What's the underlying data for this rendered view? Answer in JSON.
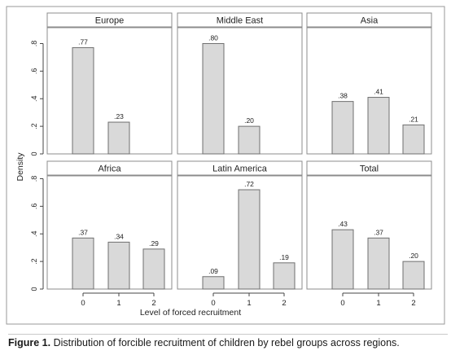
{
  "chart_data": {
    "type": "bar",
    "ylabel": "Density",
    "xlabel": "Level of forced recruitment",
    "categories": [
      "0",
      "1",
      "2"
    ],
    "ylim": [
      0,
      0.85
    ],
    "yticks": [
      {
        "value": 0,
        "label": "0"
      },
      {
        "value": 0.2,
        "label": ".2"
      },
      {
        "value": 0.4,
        "label": ".4"
      },
      {
        "value": 0.6,
        "label": ".6"
      },
      {
        "value": 0.8,
        "label": ".8"
      }
    ],
    "grid": false,
    "bar_color": "#d9d9d9",
    "panels": [
      {
        "title": "Europe",
        "values": [
          0.77,
          0.23,
          0
        ],
        "labels": [
          ".77",
          ".23",
          ""
        ]
      },
      {
        "title": "Middle East",
        "values": [
          0.8,
          0.2,
          0
        ],
        "labels": [
          ".80",
          ".20",
          ""
        ]
      },
      {
        "title": "Asia",
        "values": [
          0.38,
          0.41,
          0.21
        ],
        "labels": [
          ".38",
          ".41",
          ".21"
        ]
      },
      {
        "title": "Africa",
        "values": [
          0.37,
          0.34,
          0.29
        ],
        "labels": [
          ".37",
          ".34",
          ".29"
        ]
      },
      {
        "title": "Latin America",
        "values": [
          0.09,
          0.72,
          0.19
        ],
        "labels": [
          ".09",
          ".72",
          ".19"
        ]
      },
      {
        "title": "Total",
        "values": [
          0.43,
          0.37,
          0.2
        ],
        "labels": [
          ".43",
          ".37",
          ".20"
        ]
      }
    ]
  },
  "caption": {
    "label": "Figure 1.",
    "text": "Distribution of forcible recruitment of children by rebel groups across regions."
  }
}
